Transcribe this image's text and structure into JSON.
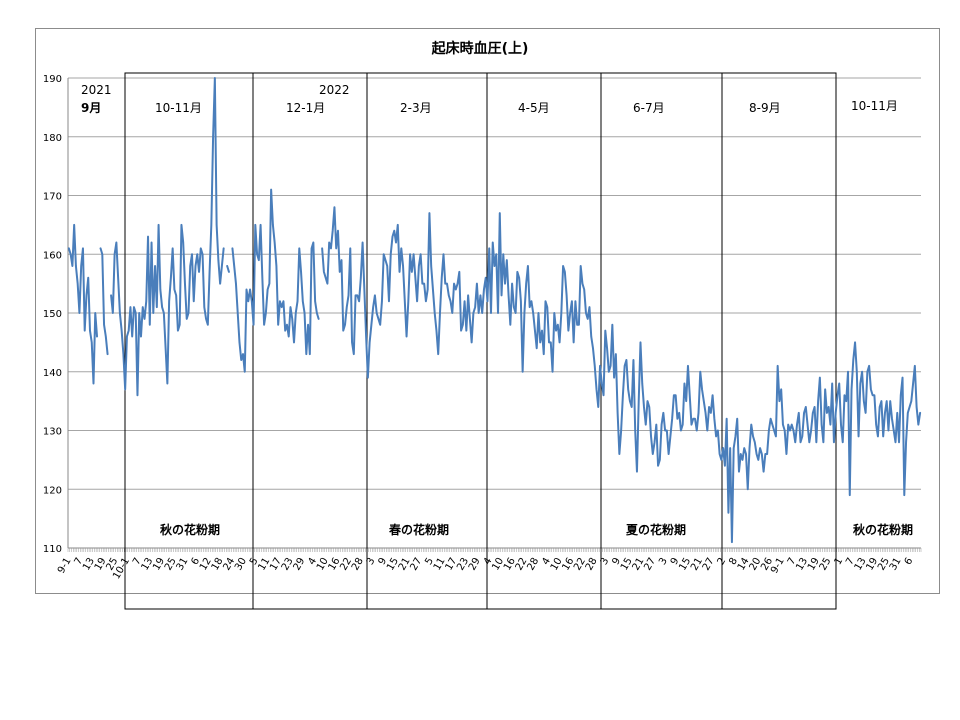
{
  "chart_data": {
    "type": "line",
    "title": "起床時血圧(上)",
    "ylim": [
      110,
      190
    ],
    "yticks": [
      110,
      120,
      130,
      140,
      150,
      160,
      170,
      180,
      190
    ],
    "grid": "horizontal",
    "legend": "none",
    "line_color": "#4a7ebb",
    "x_tick_labels": [
      "9-1",
      "7",
      "13",
      "19",
      "25",
      "10-1",
      "7",
      "13",
      "19",
      "25",
      "31",
      "6",
      "12",
      "18",
      "24",
      "30",
      "5",
      "11",
      "17",
      "23",
      "29",
      "4",
      "10",
      "16",
      "22",
      "28",
      "3",
      "9",
      "15",
      "21",
      "27",
      "5",
      "11",
      "17",
      "23",
      "29",
      "4",
      "10",
      "16",
      "22",
      "28",
      "4",
      "10",
      "16",
      "22",
      "28",
      "3",
      "9",
      "15",
      "21",
      "27",
      "3",
      "9",
      "15",
      "21",
      "27",
      "2",
      "8",
      "14",
      "20",
      "26",
      "9-1",
      "7",
      "13",
      "19",
      "25",
      "1",
      "7",
      "13",
      "19",
      "25",
      "31",
      "6"
    ],
    "series": [
      {
        "values": [
          161,
          160,
          158,
          165,
          158,
          155,
          150,
          158,
          161,
          147,
          153,
          156,
          147,
          145,
          138,
          150,
          146,
          null,
          161,
          160,
          148,
          146,
          143,
          null,
          153,
          150,
          160,
          162,
          156,
          150,
          147,
          143,
          137,
          146,
          147,
          151,
          146,
          151,
          150,
          136,
          150,
          146,
          151,
          149,
          152,
          163,
          148,
          162,
          150,
          158,
          151,
          165,
          154,
          151,
          150,
          144,
          138,
          152,
          156,
          161,
          154,
          153,
          147,
          148,
          165,
          162,
          155,
          149,
          150,
          158,
          160,
          152,
          158,
          160,
          157,
          161,
          160,
          151,
          149,
          148,
          157,
          165,
          180,
          190,
          165,
          159,
          155,
          158,
          161,
          null,
          158,
          157,
          null,
          161,
          158,
          155,
          150,
          145,
          142,
          143,
          140,
          154,
          152,
          154,
          152,
          148,
          165,
          160,
          159,
          165,
          156,
          148,
          150,
          154,
          155,
          171,
          165,
          162,
          158,
          148,
          152,
          151,
          152,
          147,
          148,
          146,
          151,
          149,
          145,
          150,
          152,
          161,
          157,
          152,
          150,
          143,
          148,
          143,
          161,
          162,
          152,
          150,
          149,
          null,
          161,
          157,
          156,
          155,
          162,
          161,
          164,
          168,
          161,
          164,
          157,
          159,
          147,
          148,
          151,
          153,
          161,
          145,
          143,
          153,
          153,
          152,
          156,
          162,
          154,
          146,
          139,
          145,
          148,
          151,
          153,
          150,
          149,
          148,
          152,
          160,
          159,
          158,
          152,
          160,
          163,
          164,
          162,
          165,
          157,
          161,
          158,
          152,
          146,
          152,
          160,
          157,
          160,
          156,
          152,
          158,
          160,
          155,
          155,
          152,
          154,
          167,
          158,
          154,
          150,
          147,
          143,
          150,
          156,
          160,
          155,
          155,
          153,
          152,
          150,
          155,
          154,
          155,
          157,
          147,
          148,
          152,
          147,
          153,
          149,
          145,
          150,
          151,
          155,
          150,
          153,
          150,
          154,
          156,
          152,
          161,
          150,
          162,
          158,
          160,
          150,
          167,
          153,
          160,
          155,
          159,
          153,
          148,
          155,
          151,
          150,
          157,
          156,
          152,
          140,
          150,
          155,
          158,
          151,
          152,
          150,
          147,
          144,
          150,
          145,
          147,
          143,
          152,
          151,
          145,
          145,
          140,
          150,
          147,
          148,
          145,
          150,
          158,
          157,
          153,
          147,
          150,
          152,
          145,
          152,
          148,
          148,
          158,
          155,
          154,
          150,
          149,
          151,
          146,
          144,
          141,
          137,
          134,
          141,
          138,
          136,
          147,
          144,
          140,
          141,
          148,
          139,
          143,
          133,
          126,
          130,
          136,
          141,
          142,
          137,
          135,
          134,
          142,
          130,
          123,
          135,
          145,
          138,
          134,
          131,
          135,
          134,
          129,
          126,
          128,
          131,
          124,
          125,
          131,
          133,
          130,
          130,
          126,
          129,
          132,
          136,
          136,
          132,
          133,
          130,
          131,
          138,
          135,
          141,
          136,
          131,
          132,
          132,
          130,
          133,
          140,
          137,
          135,
          133,
          130,
          134,
          133,
          136,
          132,
          129,
          130,
          126,
          125,
          127,
          124,
          132,
          116,
          127,
          111,
          127,
          129,
          132,
          123,
          126,
          125,
          127,
          126,
          120,
          127,
          131,
          129,
          128,
          126,
          125,
          127,
          126,
          123,
          126,
          126,
          130,
          132,
          131,
          130,
          129,
          141,
          135,
          137,
          131,
          130,
          126,
          131,
          130,
          131,
          130,
          128,
          131,
          133,
          128,
          129,
          133,
          134,
          131,
          128,
          130,
          133,
          134,
          128,
          135,
          139,
          131,
          128,
          137,
          133,
          134,
          131,
          138,
          128,
          133,
          136,
          138,
          131,
          128,
          136,
          135,
          140,
          119,
          137,
          142,
          145,
          140,
          129,
          138,
          140,
          135,
          133,
          140,
          141,
          137,
          136,
          136,
          131,
          129,
          134,
          135,
          129,
          133,
          135,
          130,
          135,
          132,
          130,
          128,
          133,
          128,
          136,
          139,
          119,
          128,
          133,
          134,
          135,
          138,
          141,
          134,
          131,
          133
        ]
      }
    ]
  },
  "annotations": {
    "year_2021": "2021",
    "year_2022": "2022",
    "periods": [
      "9月",
      "10-11月",
      "12-1月",
      "2-3月",
      "4-5月",
      "6-7月",
      "8-9月",
      "10-11月"
    ],
    "pollen": [
      "秋の花粉期",
      "春の花粉期",
      "夏の花粉期",
      "秋の花粉期"
    ]
  }
}
